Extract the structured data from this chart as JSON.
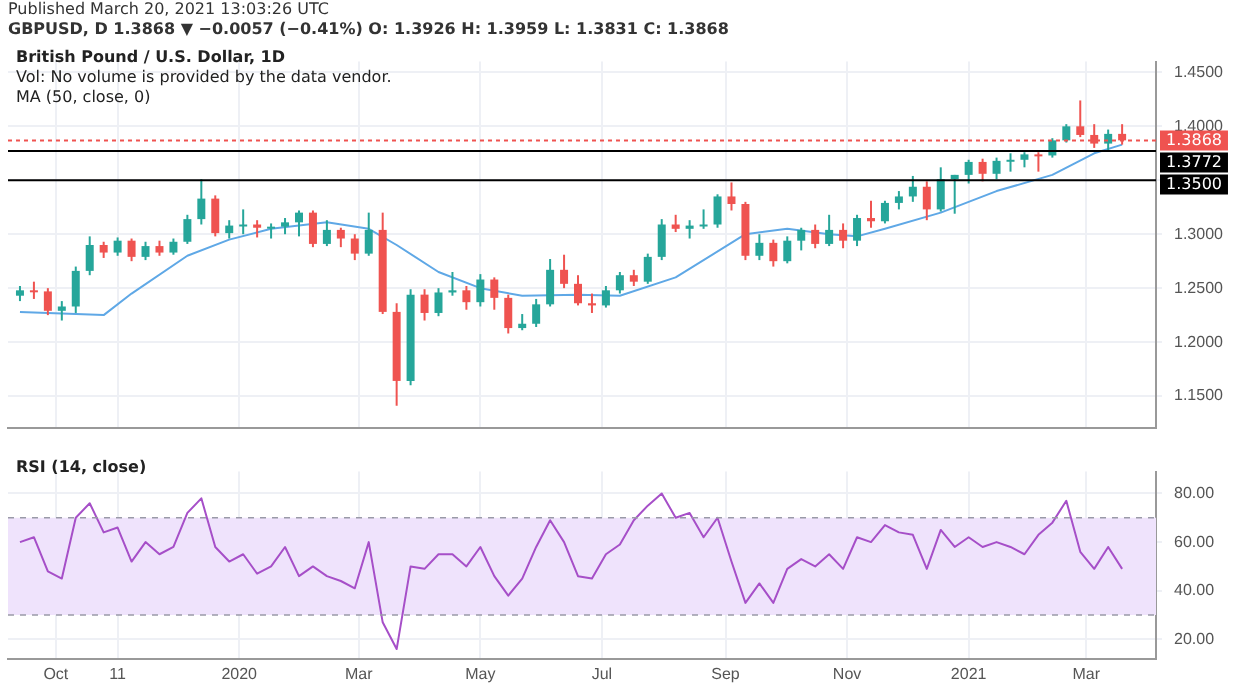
{
  "chart_data": [
    {
      "type": "candlestick",
      "title": "British Pound / U.S. Dollar, 1D",
      "annotations": [
        "Published March 20, 2021 13:03:26 UTC",
        "GBPUSD, D 1.3868 ▼ −0.0057 (−0.41%) O: 1.3926 H: 1.3959 L: 1.3831 C: 1.3868",
        "Vol: No volume is provided by the data vendor.",
        "MA (50, close, 0)"
      ],
      "x": [
        "2019-09-13",
        "2019-09-20",
        "2019-09-27",
        "2019-10-04",
        "2019-10-11",
        "2019-10-18",
        "2019-10-25",
        "2019-11-01",
        "2019-11-08",
        "2019-11-15",
        "2019-11-22",
        "2019-11-29",
        "2019-12-06",
        "2019-12-13",
        "2019-12-20",
        "2019-12-27",
        "2020-01-03",
        "2020-01-10",
        "2020-01-17",
        "2020-01-24",
        "2020-01-31",
        "2020-02-07",
        "2020-02-14",
        "2020-02-21",
        "2020-02-28",
        "2020-03-06",
        "2020-03-13",
        "2020-03-20",
        "2020-03-27",
        "2020-04-03",
        "2020-04-10",
        "2020-04-17",
        "2020-04-24",
        "2020-05-01",
        "2020-05-08",
        "2020-05-15",
        "2020-05-22",
        "2020-05-29",
        "2020-06-05",
        "2020-06-12",
        "2020-06-19",
        "2020-06-26",
        "2020-07-03",
        "2020-07-10",
        "2020-07-17",
        "2020-07-24",
        "2020-07-31",
        "2020-08-07",
        "2020-08-14",
        "2020-08-21",
        "2020-08-28",
        "2020-09-04",
        "2020-09-11",
        "2020-09-18",
        "2020-09-25",
        "2020-10-02",
        "2020-10-09",
        "2020-10-16",
        "2020-10-23",
        "2020-10-30",
        "2020-11-06",
        "2020-11-13",
        "2020-11-20",
        "2020-11-27",
        "2020-12-04",
        "2020-12-11",
        "2020-12-18",
        "2020-12-25",
        "2021-01-01",
        "2021-01-08",
        "2021-01-15",
        "2021-01-22",
        "2021-01-29",
        "2021-02-05",
        "2021-02-12",
        "2021-02-19",
        "2021-02-26",
        "2021-03-05",
        "2021-03-12",
        "2021-03-19"
      ],
      "ohlc": [
        [
          1.243,
          1.252,
          1.238,
          1.248
        ],
        [
          1.248,
          1.256,
          1.24,
          1.247
        ],
        [
          1.247,
          1.25,
          1.225,
          1.229
        ],
        [
          1.229,
          1.238,
          1.22,
          1.233
        ],
        [
          1.233,
          1.27,
          1.227,
          1.266
        ],
        [
          1.266,
          1.298,
          1.262,
          1.29
        ],
        [
          1.29,
          1.293,
          1.278,
          1.283
        ],
        [
          1.283,
          1.297,
          1.28,
          1.294
        ],
        [
          1.294,
          1.296,
          1.275,
          1.279
        ],
        [
          1.279,
          1.293,
          1.276,
          1.289
        ],
        [
          1.289,
          1.294,
          1.28,
          1.283
        ],
        [
          1.283,
          1.296,
          1.281,
          1.293
        ],
        [
          1.293,
          1.318,
          1.291,
          1.314
        ],
        [
          1.314,
          1.351,
          1.309,
          1.333
        ],
        [
          1.333,
          1.336,
          1.298,
          1.301
        ],
        [
          1.301,
          1.313,
          1.296,
          1.308
        ],
        [
          1.308,
          1.323,
          1.3,
          1.309
        ],
        [
          1.309,
          1.313,
          1.297,
          1.306
        ],
        [
          1.306,
          1.31,
          1.296,
          1.307
        ],
        [
          1.307,
          1.315,
          1.3,
          1.311
        ],
        [
          1.311,
          1.322,
          1.298,
          1.32
        ],
        [
          1.32,
          1.322,
          1.288,
          1.291
        ],
        [
          1.291,
          1.313,
          1.289,
          1.304
        ],
        [
          1.304,
          1.306,
          1.288,
          1.296
        ],
        [
          1.296,
          1.3,
          1.276,
          1.282
        ],
        [
          1.282,
          1.32,
          1.28,
          1.304
        ],
        [
          1.304,
          1.32,
          1.226,
          1.228
        ],
        [
          1.228,
          1.236,
          1.141,
          1.164
        ],
        [
          1.164,
          1.249,
          1.16,
          1.244
        ],
        [
          1.244,
          1.249,
          1.22,
          1.227
        ],
        [
          1.227,
          1.25,
          1.224,
          1.246
        ],
        [
          1.246,
          1.265,
          1.243,
          1.248
        ],
        [
          1.248,
          1.252,
          1.23,
          1.237
        ],
        [
          1.237,
          1.263,
          1.233,
          1.258
        ],
        [
          1.258,
          1.26,
          1.23,
          1.241
        ],
        [
          1.241,
          1.244,
          1.208,
          1.213
        ],
        [
          1.213,
          1.226,
          1.211,
          1.217
        ],
        [
          1.217,
          1.24,
          1.214,
          1.235
        ],
        [
          1.235,
          1.277,
          1.233,
          1.267
        ],
        [
          1.267,
          1.281,
          1.25,
          1.254
        ],
        [
          1.254,
          1.262,
          1.234,
          1.236
        ],
        [
          1.236,
          1.245,
          1.227,
          1.234
        ],
        [
          1.234,
          1.252,
          1.232,
          1.248
        ],
        [
          1.248,
          1.265,
          1.245,
          1.262
        ],
        [
          1.262,
          1.267,
          1.252,
          1.256
        ],
        [
          1.256,
          1.282,
          1.254,
          1.279
        ],
        [
          1.279,
          1.314,
          1.276,
          1.309
        ],
        [
          1.309,
          1.318,
          1.302,
          1.305
        ],
        [
          1.305,
          1.313,
          1.296,
          1.308
        ],
        [
          1.308,
          1.323,
          1.305,
          1.309
        ],
        [
          1.309,
          1.337,
          1.306,
          1.335
        ],
        [
          1.335,
          1.348,
          1.322,
          1.328
        ],
        [
          1.328,
          1.33,
          1.276,
          1.28
        ],
        [
          1.28,
          1.3,
          1.276,
          1.292
        ],
        [
          1.292,
          1.295,
          1.27,
          1.275
        ],
        [
          1.275,
          1.298,
          1.273,
          1.294
        ],
        [
          1.294,
          1.306,
          1.285,
          1.304
        ],
        [
          1.304,
          1.309,
          1.287,
          1.291
        ],
        [
          1.291,
          1.318,
          1.289,
          1.304
        ],
        [
          1.304,
          1.31,
          1.287,
          1.294
        ],
        [
          1.294,
          1.318,
          1.289,
          1.315
        ],
        [
          1.315,
          1.331,
          1.306,
          1.312
        ],
        [
          1.312,
          1.331,
          1.31,
          1.329
        ],
        [
          1.329,
          1.34,
          1.323,
          1.335
        ],
        [
          1.335,
          1.354,
          1.33,
          1.344
        ],
        [
          1.344,
          1.349,
          1.313,
          1.323
        ],
        [
          1.323,
          1.362,
          1.321,
          1.351
        ],
        [
          1.351,
          1.355,
          1.319,
          1.355
        ],
        [
          1.355,
          1.369,
          1.347,
          1.367
        ],
        [
          1.367,
          1.37,
          1.349,
          1.356
        ],
        [
          1.356,
          1.371,
          1.351,
          1.368
        ],
        [
          1.368,
          1.375,
          1.358,
          1.369
        ],
        [
          1.369,
          1.376,
          1.362,
          1.374
        ],
        [
          1.374,
          1.376,
          1.358,
          1.373
        ],
        [
          1.373,
          1.389,
          1.371,
          1.387
        ],
        [
          1.387,
          1.402,
          1.385,
          1.4
        ],
        [
          1.4,
          1.424,
          1.39,
          1.392
        ],
        [
          1.392,
          1.402,
          1.38,
          1.384
        ],
        [
          1.384,
          1.397,
          1.378,
          1.393
        ],
        [
          1.393,
          1.402,
          1.383,
          1.387
        ]
      ],
      "colors": [
        "#26a69a",
        "#ef5350",
        "#ef5350",
        "#26a69a",
        "#26a69a",
        "#26a69a",
        "#ef5350",
        "#26a69a",
        "#ef5350",
        "#26a69a",
        "#ef5350",
        "#26a69a",
        "#26a69a",
        "#26a69a",
        "#ef5350",
        "#26a69a",
        "#26a69a",
        "#ef5350",
        "#26a69a",
        "#26a69a",
        "#26a69a",
        "#ef5350",
        "#26a69a",
        "#ef5350",
        "#ef5350",
        "#26a69a",
        "#ef5350",
        "#ef5350",
        "#26a69a",
        "#ef5350",
        "#26a69a",
        "#26a69a",
        "#ef5350",
        "#26a69a",
        "#ef5350",
        "#ef5350",
        "#26a69a",
        "#26a69a",
        "#26a69a",
        "#ef5350",
        "#ef5350",
        "#ef5350",
        "#26a69a",
        "#26a69a",
        "#ef5350",
        "#26a69a",
        "#26a69a",
        "#ef5350",
        "#26a69a",
        "#26a69a",
        "#26a69a",
        "#ef5350",
        "#ef5350",
        "#26a69a",
        "#ef5350",
        "#26a69a",
        "#26a69a",
        "#ef5350",
        "#26a69a",
        "#ef5350",
        "#26a69a",
        "#ef5350",
        "#26a69a",
        "#26a69a",
        "#26a69a",
        "#ef5350",
        "#26a69a",
        "#26a69a",
        "#26a69a",
        "#ef5350",
        "#26a69a",
        "#26a69a",
        "#26a69a",
        "#ef5350",
        "#26a69a",
        "#26a69a",
        "#ef5350",
        "#ef5350",
        "#26a69a",
        "#ef5350"
      ],
      "series": [
        {
          "type": "line",
          "color": "#5fa8e6",
          "x": [
            "2019-09-13",
            "2019-10-25",
            "2019-11-08",
            "2019-12-06",
            "2019-12-27",
            "2020-01-17",
            "2020-02-14",
            "2020-03-06",
            "2020-03-20",
            "2020-04-10",
            "2020-05-01",
            "2020-05-22",
            "2020-06-19",
            "2020-07-10",
            "2020-08-07",
            "2020-09-11",
            "2020-10-02",
            "2020-10-23",
            "2020-11-06",
            "2020-11-20",
            "2020-12-18",
            "2021-01-15",
            "2021-02-12",
            "2021-03-05",
            "2021-03-19"
          ],
          "values": [
            1.228,
            1.225,
            1.245,
            1.28,
            1.295,
            1.305,
            1.311,
            1.305,
            1.29,
            1.265,
            1.25,
            1.243,
            1.244,
            1.243,
            1.26,
            1.3,
            1.305,
            1.3,
            1.298,
            1.305,
            1.32,
            1.34,
            1.355,
            1.375,
            1.383
          ]
        }
      ],
      "xlim": [
        "2019-09-07",
        "2021-04-05"
      ],
      "xticks": [
        {
          "value": "2019-10-01",
          "label": null
        },
        {
          "value": "2019-11-01",
          "label": null
        },
        {
          "value": "2020-01-01",
          "label": null
        },
        {
          "value": "2020-03-01",
          "label": null
        },
        {
          "value": "2020-05-01",
          "label": null
        },
        {
          "value": "2020-07-01",
          "label": null
        },
        {
          "value": "2020-09-01",
          "label": null
        },
        {
          "value": "2020-11-01",
          "label": null
        },
        {
          "value": "2021-01-01",
          "label": null
        },
        {
          "value": "2021-03-01",
          "label": null
        }
      ],
      "ylim": [
        1.12,
        1.46
      ],
      "yticks": [
        {
          "value": 1.15,
          "label": "1.1500"
        },
        {
          "value": 1.2,
          "label": "1.2000"
        },
        {
          "value": 1.25,
          "label": "1.2500"
        },
        {
          "value": 1.3,
          "label": "1.3000"
        },
        {
          "value": 1.35,
          "label": null
        },
        {
          "value": 1.4,
          "label": "1.4000"
        },
        {
          "value": 1.45,
          "label": "1.4500"
        }
      ],
      "ref_lines": [
        {
          "axis": "y",
          "value": 1.3868,
          "label": "1.3868",
          "color": "#ef5350",
          "line_style": "dotted"
        },
        {
          "axis": "y",
          "value": 1.3772,
          "label": "1.3772",
          "color": "#000000",
          "line_style": "solid"
        },
        {
          "axis": "y",
          "value": 1.35,
          "label": "1.3500",
          "color": "#000000",
          "line_style": "solid"
        }
      ],
      "grid": true,
      "tick_labels": "y"
    },
    {
      "type": "line",
      "title": "RSI (14, close)",
      "x": [
        "2019-09-13",
        "2019-09-20",
        "2019-09-27",
        "2019-10-04",
        "2019-10-11",
        "2019-10-18",
        "2019-10-25",
        "2019-11-01",
        "2019-11-08",
        "2019-11-15",
        "2019-11-22",
        "2019-11-29",
        "2019-12-06",
        "2019-12-13",
        "2019-12-20",
        "2019-12-27",
        "2020-01-03",
        "2020-01-10",
        "2020-01-17",
        "2020-01-24",
        "2020-01-31",
        "2020-02-07",
        "2020-02-14",
        "2020-02-21",
        "2020-02-28",
        "2020-03-06",
        "2020-03-13",
        "2020-03-20",
        "2020-03-27",
        "2020-04-03",
        "2020-04-10",
        "2020-04-17",
        "2020-04-24",
        "2020-05-01",
        "2020-05-08",
        "2020-05-15",
        "2020-05-22",
        "2020-05-29",
        "2020-06-05",
        "2020-06-12",
        "2020-06-19",
        "2020-06-26",
        "2020-07-03",
        "2020-07-10",
        "2020-07-17",
        "2020-07-24",
        "2020-07-31",
        "2020-08-07",
        "2020-08-14",
        "2020-08-21",
        "2020-08-28",
        "2020-09-04",
        "2020-09-11",
        "2020-09-18",
        "2020-09-25",
        "2020-10-02",
        "2020-10-09",
        "2020-10-16",
        "2020-10-23",
        "2020-10-30",
        "2020-11-06",
        "2020-11-13",
        "2020-11-20",
        "2020-11-27",
        "2020-12-04",
        "2020-12-11",
        "2020-12-18",
        "2020-12-25",
        "2021-01-01",
        "2021-01-08",
        "2021-01-15",
        "2021-01-22",
        "2021-01-29",
        "2021-02-05",
        "2021-02-12",
        "2021-02-19",
        "2021-02-26",
        "2021-03-05",
        "2021-03-12",
        "2021-03-19"
      ],
      "series": [
        {
          "color": "#a64fc8",
          "values": [
            60,
            62,
            48,
            45,
            70,
            76,
            64,
            66,
            52,
            60,
            55,
            58,
            72,
            78,
            58,
            52,
            55,
            47,
            50,
            58,
            46,
            50,
            46,
            44,
            41,
            60,
            27,
            16,
            50,
            49,
            55,
            55,
            50,
            58,
            46,
            38,
            45,
            58,
            69,
            60,
            46,
            45,
            55,
            59,
            69,
            75,
            80,
            70,
            72,
            62,
            70,
            52,
            35,
            43,
            35,
            49,
            53,
            50,
            55,
            49,
            62,
            60,
            67,
            64,
            63,
            49,
            65,
            58,
            62,
            58,
            60,
            58,
            55,
            63,
            68,
            77,
            56,
            49,
            58,
            49
          ]
        }
      ],
      "xlim": [
        "2019-09-07",
        "2021-04-05"
      ],
      "xticks": [
        {
          "value": "2019-10-01",
          "label": "Oct"
        },
        {
          "value": "2019-11-01",
          "label": "11"
        },
        {
          "value": "2020-01-01",
          "label": "2020"
        },
        {
          "value": "2020-03-01",
          "label": "Mar"
        },
        {
          "value": "2020-05-01",
          "label": "May"
        },
        {
          "value": "2020-07-01",
          "label": "Jul"
        },
        {
          "value": "2020-09-01",
          "label": "Sep"
        },
        {
          "value": "2020-11-01",
          "label": "Nov"
        },
        {
          "value": "2021-01-01",
          "label": "2021"
        },
        {
          "value": "2021-03-01",
          "label": "Mar"
        }
      ],
      "ylim": [
        12,
        89
      ],
      "yticks": [
        {
          "value": 20,
          "label": "20.00"
        },
        {
          "value": 40,
          "label": "40.00"
        },
        {
          "value": 60,
          "label": "60.00"
        },
        {
          "value": 80,
          "label": "80.00"
        }
      ],
      "bands": [
        {
          "axis": "y",
          "from": 30,
          "to": 70,
          "color": "#efe3fc"
        }
      ],
      "ref_lines": [
        {
          "axis": "y",
          "value": 70,
          "color": "#9a9aa8",
          "line_style": "dashed"
        },
        {
          "axis": "y",
          "value": 30,
          "color": "#9a9aa8",
          "line_style": "dashed"
        }
      ],
      "grid": true
    }
  ]
}
